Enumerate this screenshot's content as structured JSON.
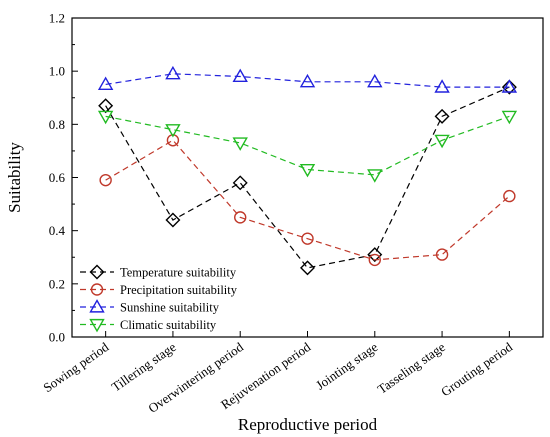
{
  "chart_data": {
    "type": "line",
    "xlabel": "Reproductive period",
    "ylabel": "Suitability",
    "ylim": [
      0,
      1.2
    ],
    "yticks": [
      "0.0",
      "0.2",
      "0.4",
      "0.6",
      "0.8",
      "1.0",
      "1.2"
    ],
    "categories": [
      "Sowing period",
      "Tillering stage",
      "Overwintering period",
      "Rejuvenation period",
      "Jointing stage",
      "Tasseling stage",
      "Grouting period"
    ],
    "legend_position": "bottom-left",
    "grid": false,
    "series": [
      {
        "name": "Temperature suitability",
        "values": [
          0.87,
          0.44,
          0.58,
          0.26,
          0.31,
          0.83,
          0.94
        ],
        "color": "#000000",
        "marker": "diamond"
      },
      {
        "name": "Precipitation suitability",
        "values": [
          0.59,
          0.74,
          0.45,
          0.37,
          0.29,
          0.31,
          0.53
        ],
        "color": "#c0392b",
        "marker": "circle"
      },
      {
        "name": "Sunshine suitability",
        "values": [
          0.95,
          0.99,
          0.98,
          0.96,
          0.96,
          0.94,
          0.94
        ],
        "color": "#2222dd",
        "marker": "triangle-up"
      },
      {
        "name": "Climatic suitability",
        "values": [
          0.83,
          0.78,
          0.73,
          0.63,
          0.61,
          0.74,
          0.83
        ],
        "color": "#22bb22",
        "marker": "triangle-down"
      }
    ]
  }
}
